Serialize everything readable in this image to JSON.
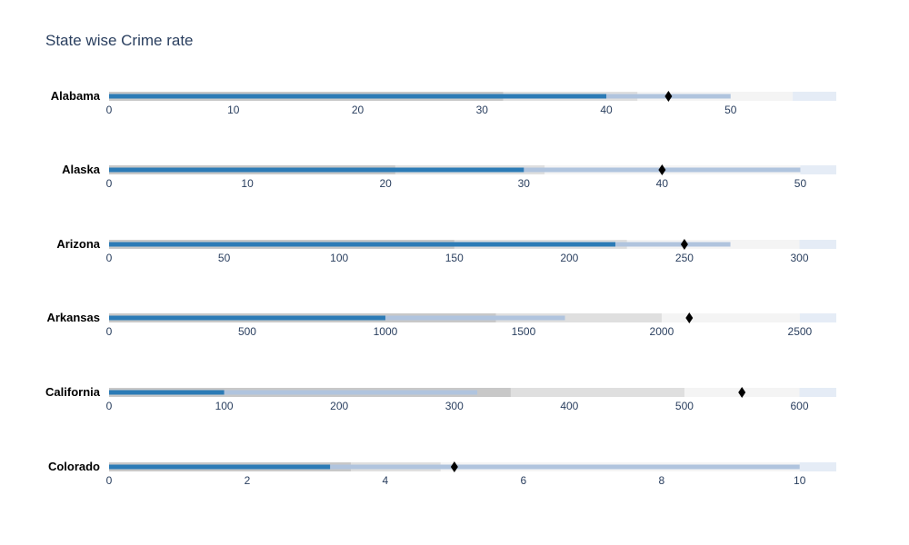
{
  "chart_data": {
    "type": "bullet",
    "title": "State wise Crime rate",
    "colors": {
      "range_light": "#f4f4f4",
      "range_mid": "#dfdfdf",
      "range_dark": "#c8c8c8",
      "axis_extension": "#e5ecf6",
      "measure_secondary": "#b0c4de",
      "measure_primary": "#2c7bb6",
      "target": "#000000",
      "title": "#2a3f5f",
      "ticks": "#2a3f5f"
    },
    "bullets": [
      {
        "label": "Alabama",
        "ranges": [
          31.7,
          42.5,
          55
        ],
        "measures": [
          40,
          50
        ],
        "target": 45,
        "axis_max": 58.5,
        "ticks": [
          0,
          10,
          20,
          30,
          40,
          50
        ]
      },
      {
        "label": "Alaska",
        "ranges": [
          20.7,
          31.5,
          50
        ],
        "measures": [
          30,
          50
        ],
        "target": 40,
        "axis_max": 52.6,
        "ticks": [
          0,
          10,
          20,
          30,
          40,
          50
        ]
      },
      {
        "label": "Arizona",
        "ranges": [
          150,
          225,
          300
        ],
        "measures": [
          220,
          270
        ],
        "target": 250,
        "axis_max": 316,
        "ticks": [
          0,
          50,
          100,
          150,
          200,
          250,
          300
        ]
      },
      {
        "label": "Arkansas",
        "ranges": [
          1400,
          2000,
          2500
        ],
        "measures": [
          1000,
          1650
        ],
        "target": 2100,
        "axis_max": 2632,
        "ticks": [
          0,
          500,
          1000,
          1500,
          2000,
          2500
        ]
      },
      {
        "label": "California",
        "ranges": [
          349,
          500,
          600
        ],
        "measures": [
          100,
          320
        ],
        "target": 550,
        "axis_max": 632,
        "ticks": [
          0,
          100,
          200,
          300,
          400,
          500,
          600
        ]
      },
      {
        "label": "Colorado",
        "ranges": [
          3.5,
          4.8,
          10
        ],
        "measures": [
          3.2,
          10
        ],
        "target": 5,
        "axis_max": 10.53,
        "ticks": [
          0,
          2,
          4,
          6,
          8,
          10
        ]
      }
    ]
  }
}
